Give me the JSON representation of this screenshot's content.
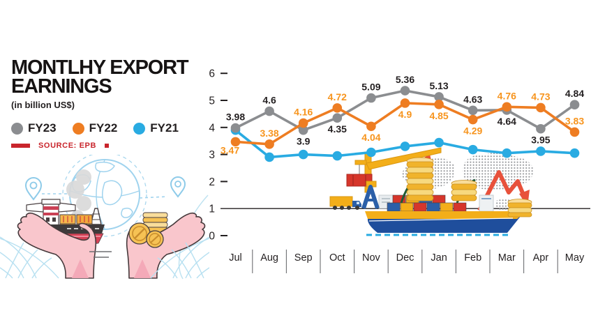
{
  "header": {
    "title_line1": "MONTLHY EXPORT",
    "title_line2": "EARNINGS",
    "subtitle": "(in billion US$)"
  },
  "legend": {
    "items": [
      {
        "label": "FY23",
        "color": "#8b8d90"
      },
      {
        "label": "FY22",
        "color": "#ee7d22"
      },
      {
        "label": "FY21",
        "color": "#29abe2"
      }
    ]
  },
  "source": {
    "label": "SOURCE: EPB"
  },
  "chart_data": {
    "type": "line",
    "title": "Monthly export earnings (in billion US$)",
    "categories": [
      "Jul",
      "Aug",
      "Sep",
      "Oct",
      "Nov",
      "Dec",
      "Jan",
      "Feb",
      "Mar",
      "Apr",
      "May"
    ],
    "series": [
      {
        "name": "FY23",
        "color": "#8b8d90",
        "label_color": "#231f20",
        "values": [
          3.98,
          4.6,
          3.9,
          4.35,
          5.09,
          5.36,
          5.13,
          4.63,
          4.64,
          3.95,
          4.84
        ],
        "labels_shown": true,
        "label_positions": [
          "above",
          "above",
          "below",
          "below",
          "above",
          "above",
          "above",
          "above",
          "below",
          "below",
          "above"
        ]
      },
      {
        "name": "FY22",
        "color": "#ee7d22",
        "label_color": "#f7941d",
        "values": [
          3.47,
          3.38,
          4.16,
          4.72,
          4.04,
          4.9,
          4.85,
          4.29,
          4.76,
          4.73,
          3.83
        ],
        "labels_shown": true,
        "label_positions": [
          "below-left",
          "above",
          "above",
          "above",
          "below",
          "below",
          "below",
          "below",
          "above",
          "above",
          "above"
        ]
      },
      {
        "name": "FY21",
        "color": "#29abe2",
        "values": [
          3.9,
          2.9,
          3.0,
          2.95,
          3.08,
          3.3,
          3.44,
          3.18,
          3.05,
          3.12,
          3.05
        ],
        "labels_shown": false,
        "note": "values estimated from plot; no data labels shown in original"
      }
    ],
    "ylim": [
      0,
      6
    ],
    "yticks": [
      0,
      1,
      2,
      3,
      4,
      5,
      6
    ],
    "baseline_value": 1,
    "grid": false,
    "legend_position": "left",
    "xlabel": "",
    "ylabel": ""
  }
}
